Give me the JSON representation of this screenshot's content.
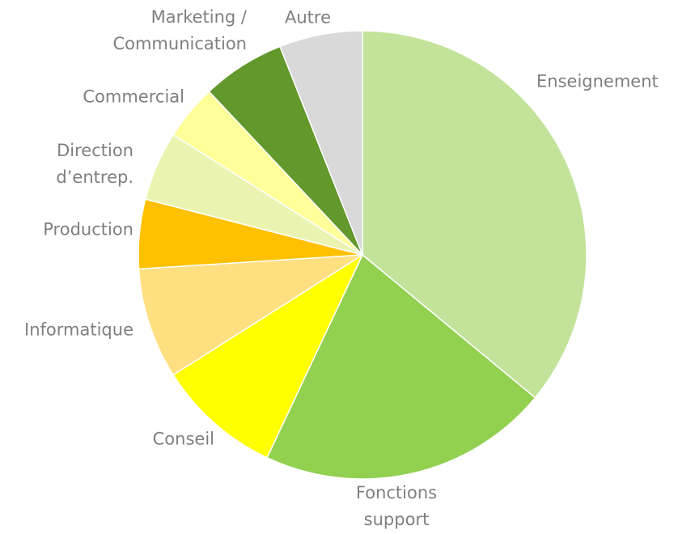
{
  "chart_data": {
    "type": "pie",
    "categories": [
      "Enseignement",
      "Fonctions support",
      "Conseil",
      "Informatique",
      "Production",
      "Direction d’entrep.",
      "Commercial",
      "Marketing / Communication",
      "Autre"
    ],
    "values": [
      36,
      21,
      9,
      8,
      5,
      5,
      4,
      6,
      6
    ],
    "colors": [
      "#c3e39b",
      "#92d050",
      "#ffff00",
      "#ffdf80",
      "#ffc000",
      "#eaf4b0",
      "#ffff99",
      "#63982c",
      "#d9d9d9"
    ]
  }
}
